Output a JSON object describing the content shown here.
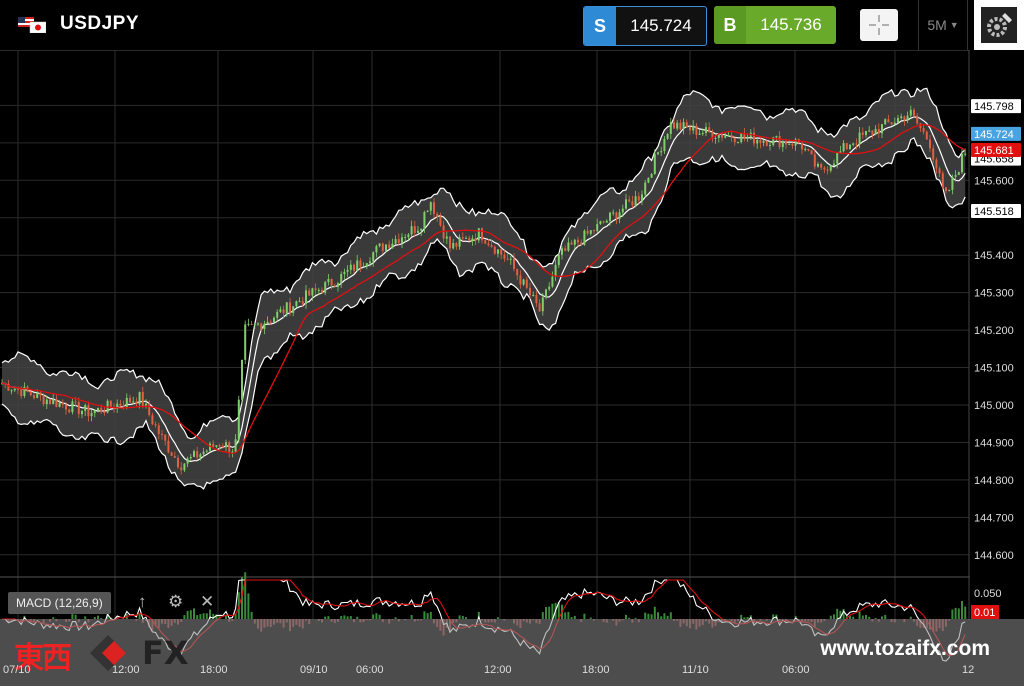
{
  "header": {
    "symbol": "USDJPY",
    "sell": {
      "tag": "S",
      "price": "145.724"
    },
    "buy": {
      "tag": "B",
      "price": "145.736"
    },
    "timeframe": "5M"
  },
  "price_axis": {
    "ticks": [
      "145.600",
      "145.400",
      "145.300",
      "145.200",
      "145.100",
      "145.000",
      "144.900",
      "144.800",
      "144.700",
      "144.600"
    ],
    "labels": [
      {
        "text": "145.798",
        "value": 145.798,
        "bg": "#ffffff",
        "fg": "#000000"
      },
      {
        "text": "145.724",
        "value": 145.724,
        "bg": "#49a3e0",
        "fg": "#ffffff"
      },
      {
        "text": "145.658",
        "value": 145.658,
        "bg": "#ffffff",
        "fg": "#000000"
      },
      {
        "text": "145.681",
        "value": 145.681,
        "bg": "#e01010",
        "fg": "#ffffff"
      },
      {
        "text": "145.518",
        "value": 145.518,
        "bg": "#ffffff",
        "fg": "#000000"
      }
    ]
  },
  "macd": {
    "label": "MACD (12,26,9)",
    "ticks": [
      "0.050"
    ],
    "current": "0.01"
  },
  "time_axis": [
    "07/10",
    "12:00",
    "18:00",
    "09/10",
    "06:00",
    "12:00",
    "18:00",
    "11/10",
    "06:00",
    "12"
  ],
  "footer": {
    "brand_cjk": "東西",
    "brand_fx": "FX",
    "site": "www.tozaifx.com"
  },
  "colors": {
    "bull": "#7fcf6a",
    "bear": "#e06040",
    "band": "#ffffff",
    "ma": "#e01010",
    "accent_sell": "#2f8ad6",
    "accent_buy": "#6aaa2a"
  }
}
